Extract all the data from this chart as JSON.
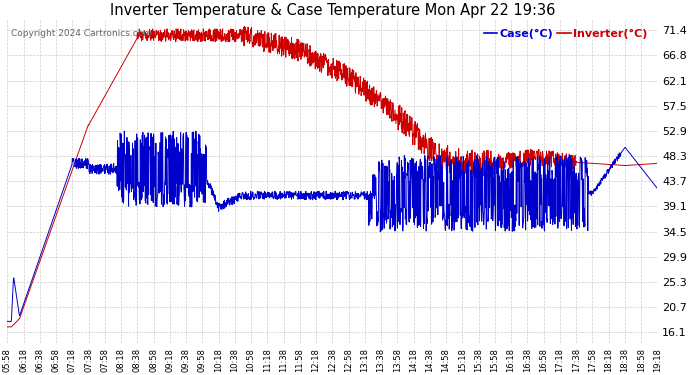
{
  "title": "Inverter Temperature & Case Temperature Mon Apr 22 19:36",
  "copyright": "Copyright 2024 Cartronics.com",
  "legend_case": "Case(°C)",
  "legend_inverter": "Inverter(°C)",
  "yticks": [
    16.1,
    20.7,
    25.3,
    29.9,
    34.5,
    39.1,
    43.7,
    48.3,
    52.9,
    57.5,
    62.1,
    66.8,
    71.4
  ],
  "ymin": 14.0,
  "ymax": 73.5,
  "xtick_labels": [
    "05:58",
    "06:18",
    "06:38",
    "06:58",
    "07:18",
    "07:38",
    "07:58",
    "08:18",
    "08:38",
    "08:58",
    "09:18",
    "09:38",
    "09:58",
    "10:18",
    "10:38",
    "10:58",
    "11:18",
    "11:38",
    "11:58",
    "12:18",
    "12:38",
    "12:58",
    "13:18",
    "13:38",
    "13:58",
    "14:18",
    "14:38",
    "14:58",
    "15:18",
    "15:38",
    "15:58",
    "16:18",
    "16:38",
    "16:58",
    "17:18",
    "17:38",
    "17:58",
    "18:18",
    "18:38",
    "18:58",
    "19:18"
  ],
  "inverter_color": "#cc0000",
  "case_color": "#0000cc",
  "bg_color": "#ffffff",
  "grid_color": "#cccccc",
  "title_color": "#000000",
  "copyright_color": "#555555"
}
